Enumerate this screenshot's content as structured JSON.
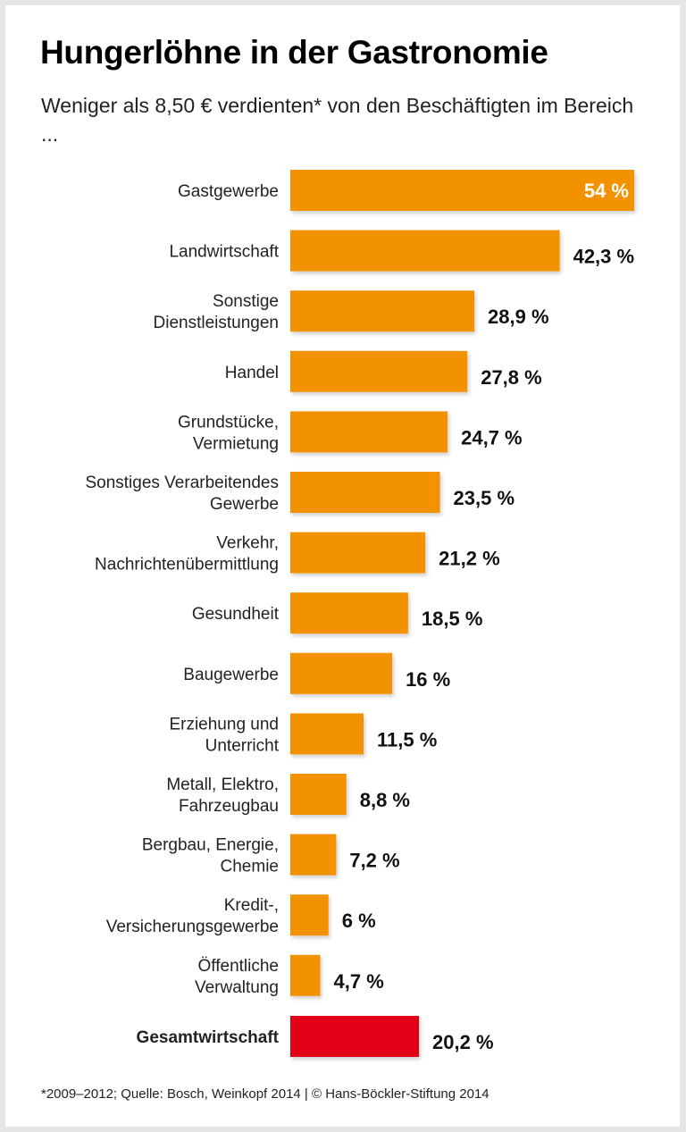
{
  "title": "Hungerlöhne in der Gastronomie",
  "subtitle": "Weniger als 8,50 € verdienten* von den Beschäftigten im Bereich ...",
  "footnote": "*2009–2012; Quelle: Bosch, Weinkopf 2014 | © Hans-Böckler-Stiftung 2014",
  "chart_data": {
    "type": "bar",
    "orientation": "horizontal",
    "title": "Hungerlöhne in der Gastronomie",
    "categories": [
      "Gastgewerbe",
      "Landwirtschaft",
      "Sonstige\nDienstleistungen",
      "Handel",
      "Grundstücke,\nVermietung",
      "Sonstiges Verarbeitendes\nGewerbe",
      "Verkehr,\nNachrichtenübermittlung",
      "Gesundheit",
      "Baugewerbe",
      "Erziehung und\nUnterricht",
      "Metall, Elektro,\nFahrzeugbau",
      "Bergbau, Energie,\nChemie",
      "Kredit-,\nVersicherungsgewerbe",
      "Öffentliche\nVerwaltung",
      "Gesamtwirtschaft"
    ],
    "values": [
      54,
      42.3,
      28.9,
      27.8,
      24.7,
      23.5,
      21.2,
      18.5,
      16,
      11.5,
      8.8,
      7.2,
      6,
      4.7,
      20.2
    ],
    "value_labels": [
      "54 %",
      "42,3 %",
      "28,9 %",
      "27,8 %",
      "24,7 %",
      "23,5 %",
      "21,2 %",
      "18,5 %",
      "16 %",
      "11,5 %",
      "8,8 %",
      "7,2 %",
      "6 %",
      "4,7 %",
      "20,2 %"
    ],
    "unit": "%",
    "xlim": [
      0,
      54
    ],
    "grid": false,
    "colors": {
      "bar": "#f39200",
      "total_bar": "#e30613",
      "inside_label": "#ffffff",
      "label": "#111111"
    }
  }
}
